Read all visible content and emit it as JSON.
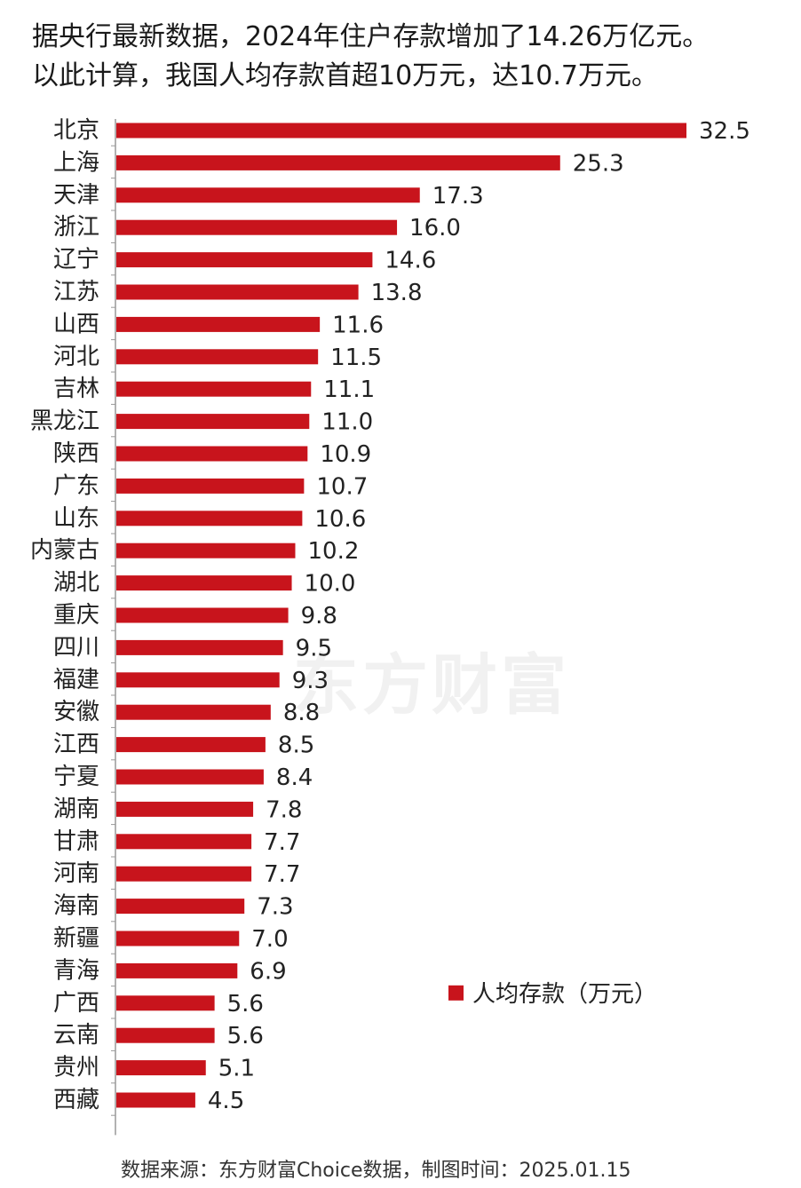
{
  "header": {
    "line1": "据央行最新数据，2024年住户存款增加了14.26万亿元。",
    "line2": "以此计算，我国人均存款首超10万元，达10.7万元。"
  },
  "watermark": "东方财富",
  "source": "数据来源：东方财富Choice数据，制图时间：2025.01.15",
  "colors": {
    "bar": "#c8141c",
    "axis": "#999999"
  },
  "chart_data": {
    "type": "bar",
    "orientation": "horizontal",
    "categories": [
      "北京",
      "上海",
      "天津",
      "浙江",
      "辽宁",
      "江苏",
      "山西",
      "河北",
      "吉林",
      "黑龙江",
      "陕西",
      "广东",
      "山东",
      "内蒙古",
      "湖北",
      "重庆",
      "四川",
      "福建",
      "安徽",
      "江西",
      "宁夏",
      "湖南",
      "甘肃",
      "河南",
      "海南",
      "新疆",
      "青海",
      "广西",
      "云南",
      "贵州",
      "西藏"
    ],
    "series": [
      {
        "name": "人均存款（万元）",
        "values": [
          32.5,
          25.3,
          17.3,
          16.0,
          14.6,
          13.8,
          11.6,
          11.5,
          11.1,
          11.0,
          10.9,
          10.7,
          10.6,
          10.2,
          10.0,
          9.8,
          9.5,
          9.3,
          8.8,
          8.5,
          8.4,
          7.8,
          7.7,
          7.7,
          7.3,
          7.0,
          6.9,
          5.6,
          5.6,
          5.1,
          4.5
        ],
        "value_labels": [
          "32.5",
          "25.3",
          "17.3",
          "16.0",
          "14.6",
          "13.8",
          "11.6",
          "11.5",
          "11.1",
          "11.0",
          "10.9",
          "10.7",
          "10.6",
          "10.2",
          "10.0",
          "9.8",
          "9.5",
          "9.3",
          "8.8",
          "8.5",
          "8.4",
          "7.8",
          "7.7",
          "7.7",
          "7.3",
          "7.0",
          "6.9",
          "5.6",
          "5.6",
          "5.1",
          "4.5"
        ]
      }
    ],
    "xlim": [
      0,
      32.5
    ],
    "grid": false,
    "legend": "bottom-right"
  }
}
